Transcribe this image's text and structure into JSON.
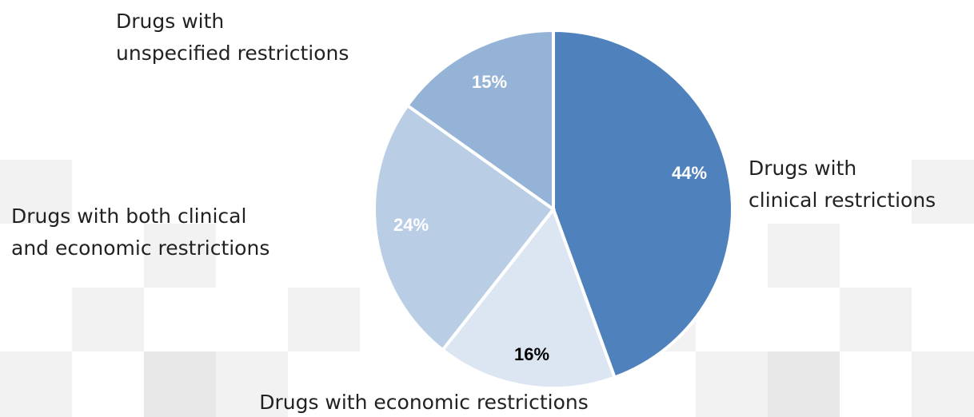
{
  "chart_data": {
    "type": "pie",
    "categories": [
      "Drugs with\nclinical restrictions",
      "Drugs with economic restrictions",
      "Drugs with both clinical\nand economic restrictions",
      "Drugs with\nunspecified restrictions"
    ],
    "values": [
      44,
      16,
      24,
      15
    ],
    "value_labels": [
      "44%",
      "16%",
      "24%",
      "15%"
    ],
    "colors": [
      "#4f81bd",
      "#dce6f2",
      "#b9cde5",
      "#95b3d7"
    ]
  }
}
